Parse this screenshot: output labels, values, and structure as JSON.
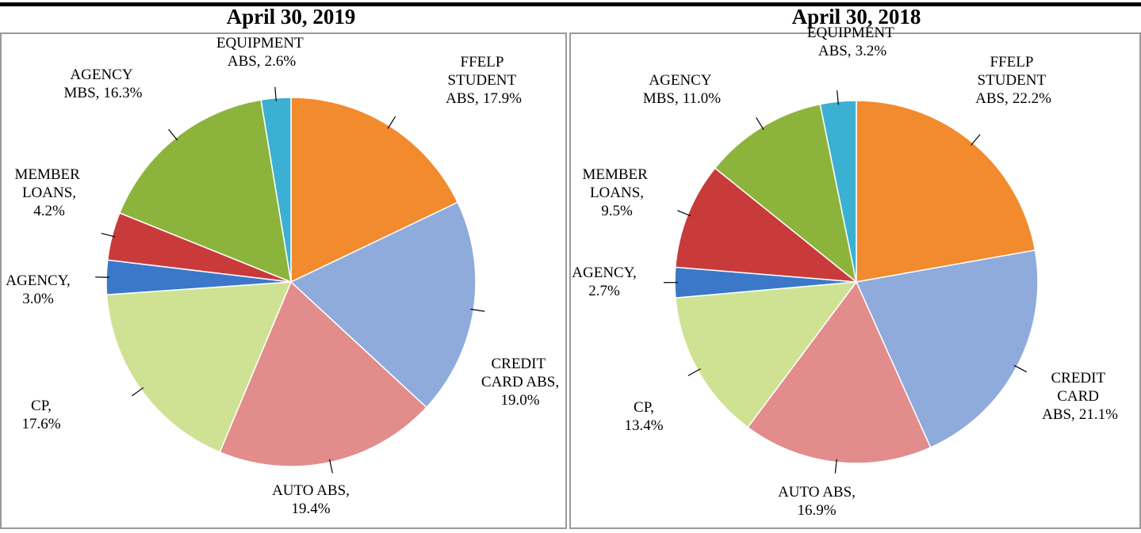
{
  "chart_data": [
    {
      "type": "pie",
      "title": "April 30, 2019",
      "categories": [
        "FFELP STUDENT ABS,",
        "CREDIT CARD ABS,",
        "AUTO ABS,",
        "CP,",
        "AGENCY,",
        "MEMBER LOANS,",
        "AGENCY MBS,",
        "EQUIPMENT ABS,"
      ],
      "values": [
        17.9,
        19.0,
        19.4,
        17.6,
        3.0,
        4.2,
        16.3,
        2.6
      ],
      "value_labels": [
        "17.9%",
        "19.0%",
        "19.4%",
        "17.6%",
        "3.0%",
        "4.2%",
        "16.3%",
        "2.6%"
      ],
      "colors": [
        "#f28a2e",
        "#8eabdc",
        "#e28c8c",
        "#cfe294",
        "#3b78c9",
        "#c93b3b",
        "#8cb43c",
        "#3bb0d2"
      ]
    },
    {
      "type": "pie",
      "title": "April 30, 2018",
      "categories": [
        "FFELP STUDENT ABS,",
        "CREDIT CARD ABS,",
        "AUTO ABS,",
        "CP,",
        "AGENCY,",
        "MEMBER LOANS,",
        "AGENCY MBS,",
        "EQUIPMENT ABS,"
      ],
      "values": [
        22.2,
        21.1,
        16.9,
        13.4,
        2.7,
        9.5,
        11.0,
        3.2
      ],
      "value_labels": [
        "22.2%",
        "21.1%",
        "16.9%",
        "13.4%",
        "2.7%",
        "9.5%",
        "11.0%",
        "3.2%"
      ],
      "colors": [
        "#f28a2e",
        "#8eabdc",
        "#e28c8c",
        "#cfe294",
        "#3b78c9",
        "#c93b3b",
        "#8cb43c",
        "#3bb0d2"
      ]
    }
  ]
}
